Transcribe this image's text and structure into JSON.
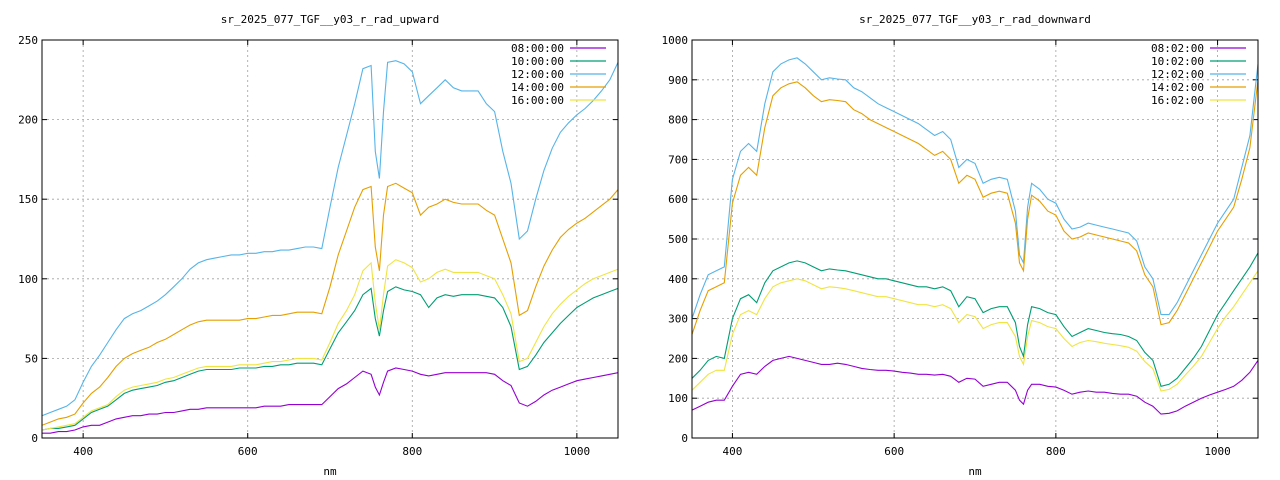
{
  "chart_data": [
    {
      "type": "line",
      "title": "sr_2025_077_TGF__y03_r_rad_upward",
      "xlabel": "nm",
      "ylabel": "",
      "xlim": [
        350,
        1050
      ],
      "ylim": [
        0,
        250
      ],
      "xticks": [
        400,
        600,
        800,
        1000
      ],
      "yticks": [
        0,
        50,
        100,
        150,
        200,
        250
      ],
      "grid": true,
      "legend_position": "top-right",
      "x": [
        350,
        360,
        370,
        380,
        390,
        400,
        410,
        420,
        430,
        440,
        450,
        460,
        470,
        480,
        490,
        500,
        510,
        520,
        530,
        540,
        550,
        560,
        570,
        580,
        590,
        600,
        610,
        620,
        630,
        640,
        650,
        660,
        670,
        680,
        690,
        700,
        710,
        720,
        730,
        740,
        750,
        755,
        760,
        765,
        770,
        780,
        790,
        800,
        810,
        820,
        830,
        840,
        850,
        860,
        870,
        880,
        890,
        900,
        910,
        920,
        930,
        940,
        950,
        960,
        970,
        980,
        990,
        1000,
        1010,
        1020,
        1030,
        1040,
        1050
      ],
      "series": [
        {
          "name": "08:00:00",
          "color": "#9400d3",
          "values": [
            3,
            3,
            4,
            4,
            5,
            7,
            8,
            8,
            10,
            12,
            13,
            14,
            14,
            15,
            15,
            16,
            16,
            17,
            18,
            18,
            19,
            19,
            19,
            19,
            19,
            19,
            19,
            20,
            20,
            20,
            21,
            21,
            21,
            21,
            21,
            26,
            31,
            34,
            38,
            42,
            40,
            32,
            27,
            35,
            42,
            44,
            43,
            42,
            40,
            39,
            40,
            41,
            41,
            41,
            41,
            41,
            41,
            40,
            36,
            33,
            22,
            20,
            23,
            27,
            30,
            32,
            34,
            36,
            37,
            38,
            39,
            40,
            41
          ]
        },
        {
          "name": "10:00:00",
          "color": "#009e73",
          "values": [
            5,
            6,
            6,
            7,
            8,
            12,
            16,
            18,
            20,
            24,
            28,
            30,
            31,
            32,
            33,
            35,
            36,
            38,
            40,
            42,
            43,
            43,
            43,
            43,
            44,
            44,
            44,
            45,
            45,
            46,
            46,
            47,
            47,
            47,
            46,
            56,
            66,
            73,
            80,
            90,
            94,
            75,
            64,
            80,
            92,
            95,
            93,
            92,
            90,
            82,
            88,
            90,
            89,
            90,
            90,
            90,
            89,
            88,
            82,
            70,
            43,
            45,
            52,
            60,
            66,
            72,
            77,
            82,
            85,
            88,
            90,
            92,
            94
          ]
        },
        {
          "name": "12:00:00",
          "color": "#56b4e9",
          "values": [
            14,
            16,
            18,
            20,
            24,
            35,
            45,
            52,
            60,
            68,
            75,
            78,
            80,
            83,
            86,
            90,
            95,
            100,
            106,
            110,
            112,
            113,
            114,
            115,
            115,
            116,
            116,
            117,
            117,
            118,
            118,
            119,
            120,
            120,
            119,
            145,
            170,
            190,
            210,
            232,
            234,
            180,
            163,
            205,
            236,
            237,
            235,
            230,
            210,
            215,
            220,
            225,
            220,
            218,
            218,
            218,
            210,
            205,
            180,
            160,
            125,
            130,
            150,
            168,
            182,
            192,
            198,
            203,
            207,
            212,
            218,
            225,
            236
          ]
        },
        {
          "name": "14:00:00",
          "color": "#e69f00",
          "values": [
            8,
            10,
            12,
            13,
            15,
            22,
            28,
            32,
            38,
            45,
            50,
            53,
            55,
            57,
            60,
            62,
            65,
            68,
            71,
            73,
            74,
            74,
            74,
            74,
            74,
            75,
            75,
            76,
            77,
            77,
            78,
            79,
            79,
            79,
            78,
            95,
            115,
            130,
            145,
            156,
            158,
            120,
            105,
            140,
            158,
            160,
            157,
            154,
            140,
            145,
            147,
            150,
            148,
            147,
            147,
            147,
            143,
            140,
            125,
            110,
            77,
            80,
            95,
            108,
            118,
            126,
            131,
            135,
            138,
            142,
            146,
            150,
            156
          ]
        },
        {
          "name": "16:00:00",
          "color": "#f0e442",
          "values": [
            5,
            6,
            7,
            8,
            9,
            13,
            17,
            19,
            21,
            26,
            30,
            32,
            33,
            34,
            35,
            37,
            38,
            40,
            42,
            44,
            45,
            45,
            45,
            45,
            46,
            46,
            46,
            47,
            48,
            48,
            49,
            50,
            50,
            50,
            49,
            60,
            72,
            80,
            90,
            105,
            110,
            85,
            68,
            90,
            108,
            112,
            110,
            107,
            98,
            100,
            104,
            106,
            104,
            104,
            104,
            104,
            102,
            100,
            90,
            78,
            48,
            50,
            60,
            70,
            78,
            84,
            89,
            93,
            97,
            100,
            102,
            104,
            106
          ]
        }
      ]
    },
    {
      "type": "line",
      "title": "sr_2025_077_TGF__y03_r_rad_downward",
      "xlabel": "nm",
      "ylabel": "",
      "xlim": [
        350,
        1050
      ],
      "ylim": [
        0,
        1000
      ],
      "xticks": [
        400,
        600,
        800,
        1000
      ],
      "yticks": [
        0,
        100,
        200,
        300,
        400,
        500,
        600,
        700,
        800,
        900,
        1000
      ],
      "grid": true,
      "legend_position": "top-right",
      "x": [
        350,
        360,
        370,
        380,
        390,
        400,
        410,
        420,
        430,
        440,
        450,
        460,
        470,
        480,
        490,
        500,
        510,
        520,
        530,
        540,
        550,
        560,
        570,
        580,
        590,
        600,
        610,
        620,
        630,
        640,
        650,
        660,
        670,
        680,
        690,
        700,
        710,
        720,
        730,
        740,
        750,
        755,
        760,
        765,
        770,
        780,
        790,
        800,
        810,
        820,
        830,
        840,
        850,
        860,
        870,
        880,
        890,
        900,
        910,
        920,
        930,
        940,
        950,
        960,
        970,
        980,
        990,
        1000,
        1010,
        1020,
        1030,
        1040,
        1050
      ],
      "series": [
        {
          "name": "08:02:00",
          "color": "#9400d3",
          "values": [
            70,
            80,
            90,
            95,
            95,
            130,
            160,
            165,
            160,
            180,
            195,
            200,
            205,
            200,
            195,
            190,
            185,
            185,
            188,
            185,
            180,
            175,
            172,
            170,
            170,
            168,
            165,
            163,
            160,
            160,
            158,
            160,
            155,
            140,
            150,
            148,
            130,
            135,
            140,
            140,
            120,
            95,
            85,
            120,
            135,
            135,
            130,
            128,
            120,
            110,
            115,
            118,
            115,
            115,
            112,
            110,
            110,
            105,
            90,
            80,
            60,
            62,
            68,
            80,
            90,
            100,
            108,
            115,
            122,
            130,
            145,
            165,
            195
          ]
        },
        {
          "name": "10:02:00",
          "color": "#009e73",
          "values": [
            150,
            170,
            195,
            205,
            200,
            300,
            350,
            360,
            340,
            390,
            420,
            430,
            440,
            445,
            440,
            430,
            420,
            425,
            422,
            420,
            415,
            410,
            405,
            400,
            400,
            395,
            390,
            385,
            380,
            380,
            375,
            380,
            370,
            330,
            355,
            350,
            315,
            325,
            330,
            330,
            290,
            230,
            205,
            285,
            330,
            325,
            315,
            310,
            280,
            255,
            265,
            275,
            270,
            265,
            262,
            260,
            255,
            245,
            215,
            195,
            130,
            135,
            150,
            175,
            200,
            230,
            270,
            310,
            340,
            370,
            400,
            430,
            465
          ]
        },
        {
          "name": "12:02:00",
          "color": "#56b4e9",
          "values": [
            300,
            360,
            410,
            420,
            430,
            650,
            720,
            740,
            720,
            840,
            920,
            940,
            950,
            955,
            940,
            920,
            900,
            905,
            902,
            900,
            880,
            870,
            855,
            840,
            830,
            820,
            810,
            800,
            790,
            775,
            760,
            770,
            750,
            680,
            700,
            690,
            640,
            650,
            655,
            650,
            570,
            460,
            440,
            580,
            640,
            625,
            600,
            590,
            550,
            525,
            530,
            540,
            535,
            530,
            525,
            520,
            515,
            495,
            430,
            400,
            310,
            310,
            340,
            380,
            420,
            460,
            500,
            540,
            570,
            600,
            680,
            760,
            940
          ]
        },
        {
          "name": "14:02:00",
          "color": "#e69f00",
          "values": [
            260,
            320,
            370,
            380,
            390,
            590,
            660,
            680,
            660,
            780,
            860,
            880,
            890,
            895,
            880,
            860,
            845,
            850,
            848,
            845,
            825,
            815,
            800,
            790,
            780,
            770,
            760,
            750,
            740,
            725,
            710,
            720,
            700,
            640,
            660,
            650,
            605,
            615,
            620,
            615,
            540,
            440,
            420,
            550,
            610,
            595,
            570,
            560,
            520,
            500,
            505,
            515,
            510,
            505,
            500,
            495,
            490,
            470,
            410,
            380,
            285,
            290,
            320,
            360,
            400,
            440,
            480,
            520,
            550,
            580,
            650,
            730,
            900
          ]
        },
        {
          "name": "16:02:00",
          "color": "#f0e442",
          "values": [
            120,
            140,
            160,
            170,
            170,
            260,
            310,
            320,
            310,
            350,
            380,
            390,
            395,
            400,
            395,
            385,
            375,
            380,
            378,
            375,
            370,
            365,
            360,
            355,
            355,
            350,
            345,
            340,
            335,
            335,
            330,
            335,
            325,
            290,
            310,
            305,
            275,
            285,
            290,
            290,
            255,
            205,
            185,
            255,
            295,
            290,
            280,
            275,
            250,
            230,
            240,
            245,
            242,
            238,
            235,
            232,
            228,
            218,
            192,
            174,
            118,
            122,
            135,
            158,
            180,
            205,
            240,
            275,
            305,
            330,
            360,
            390,
            420
          ]
        }
      ]
    }
  ]
}
